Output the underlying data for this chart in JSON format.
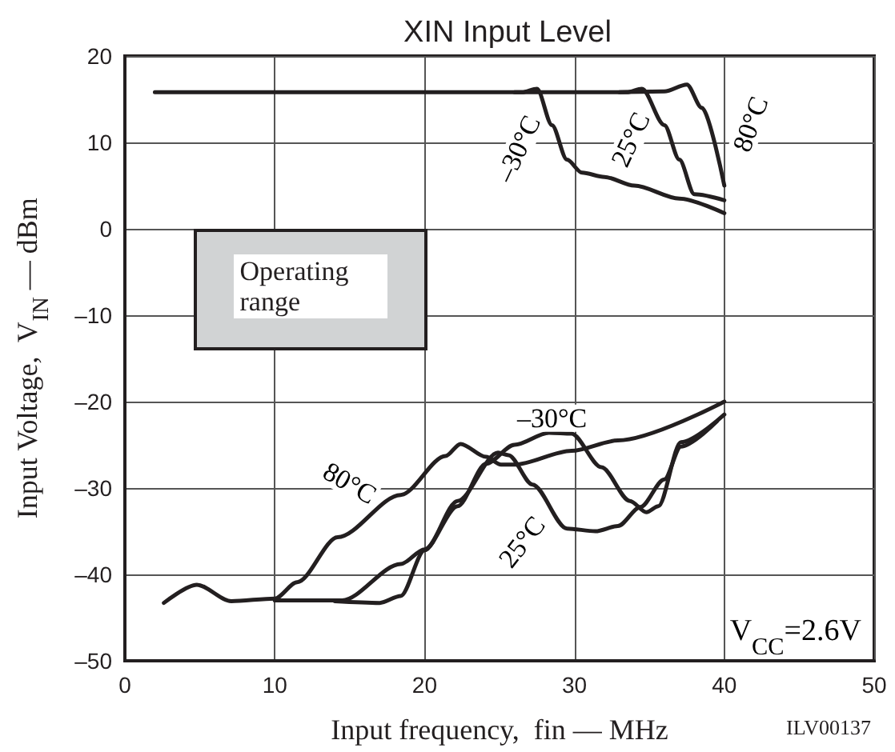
{
  "chart_data": {
    "type": "line",
    "title": "XIN Input Level",
    "xlabel": "Input frequency,  fin — MHz",
    "ylabel": "Input Voltage,  V$_{IN}$ — dBm",
    "xlim": [
      0,
      50
    ],
    "ylim": [
      -50,
      20
    ],
    "xticks": [
      0,
      10,
      20,
      30,
      40,
      50
    ],
    "yticks": [
      {
        "value": -50,
        "label": "–50"
      },
      {
        "value": -40,
        "label": "–40"
      },
      {
        "value": -30,
        "label": "–30"
      },
      {
        "value": -20,
        "label": "–20"
      },
      {
        "value": -10,
        "label": "–10"
      },
      0,
      10,
      20
    ],
    "grid": true,
    "marker": "none",
    "line_style": "solid",
    "series": [
      {
        "color": "#231f20",
        "x": [
          2,
          10,
          20,
          26.5,
          27.5,
          28.5,
          29.5,
          30.5,
          32,
          34,
          37,
          40
        ],
        "values": [
          15.8,
          15.8,
          15.8,
          15.8,
          16.2,
          12,
          8,
          6.5,
          6,
          5,
          3.5,
          1.8
        ]
      },
      {
        "color": "#231f20",
        "x": [
          26,
          30,
          33.5,
          34.5,
          36,
          37,
          38,
          40
        ],
        "values": [
          15.8,
          15.8,
          15.8,
          16.2,
          12,
          8,
          4,
          3.3
        ]
      },
      {
        "color": "#231f20",
        "x": [
          33,
          36,
          37.5,
          38.5,
          40
        ],
        "values": [
          15.8,
          15.9,
          16.7,
          14,
          5
        ]
      },
      {
        "color": "#231f20",
        "x": [
          2.6,
          4.8,
          7.1,
          10,
          11.5,
          14.2,
          18.4,
          21.4,
          22.4,
          24.1,
          25.1,
          26,
          29.8,
          32.9,
          40
        ],
        "values": [
          -43.3,
          -41.2,
          -43.1,
          -42.8,
          -40.9,
          -35.7,
          -30.8,
          -26.3,
          -24.9,
          -26.4,
          -27.3,
          -27.3,
          -25.7,
          -24.5,
          -20
        ]
      },
      {
        "color": "#231f20",
        "x": [
          10,
          14.5,
          18.4,
          20,
          22.2,
          24.1,
          26,
          28.3,
          29.8,
          31.8,
          33.7,
          34.8,
          35.6,
          37.1,
          40
        ],
        "values": [
          -43,
          -43,
          -38.8,
          -37.1,
          -32.1,
          -27.2,
          -25,
          -23.6,
          -23.7,
          -27.6,
          -31.5,
          -32.8,
          -32.1,
          -24.7,
          -21.5
        ]
      },
      {
        "color": "#231f20",
        "x": [
          14,
          17,
          18.4,
          20,
          22.2,
          24.9,
          25.6,
          27.2,
          29.5,
          31.4,
          32.9,
          34.4,
          36,
          37.1,
          39.5
        ],
        "values": [
          -43.1,
          -43.3,
          -42.5,
          -37.2,
          -31.5,
          -25.9,
          -26.2,
          -29.6,
          -34.7,
          -35,
          -34.4,
          -32.2,
          -29,
          -25.2,
          -22.3
        ]
      }
    ],
    "annotations": [
      "–30°C",
      "25°C",
      "80°C",
      "80°C",
      "–30°C",
      "25°C",
      "Operating range",
      "V$_{CC}$=2.6V",
      "ILV00137"
    ]
  }
}
